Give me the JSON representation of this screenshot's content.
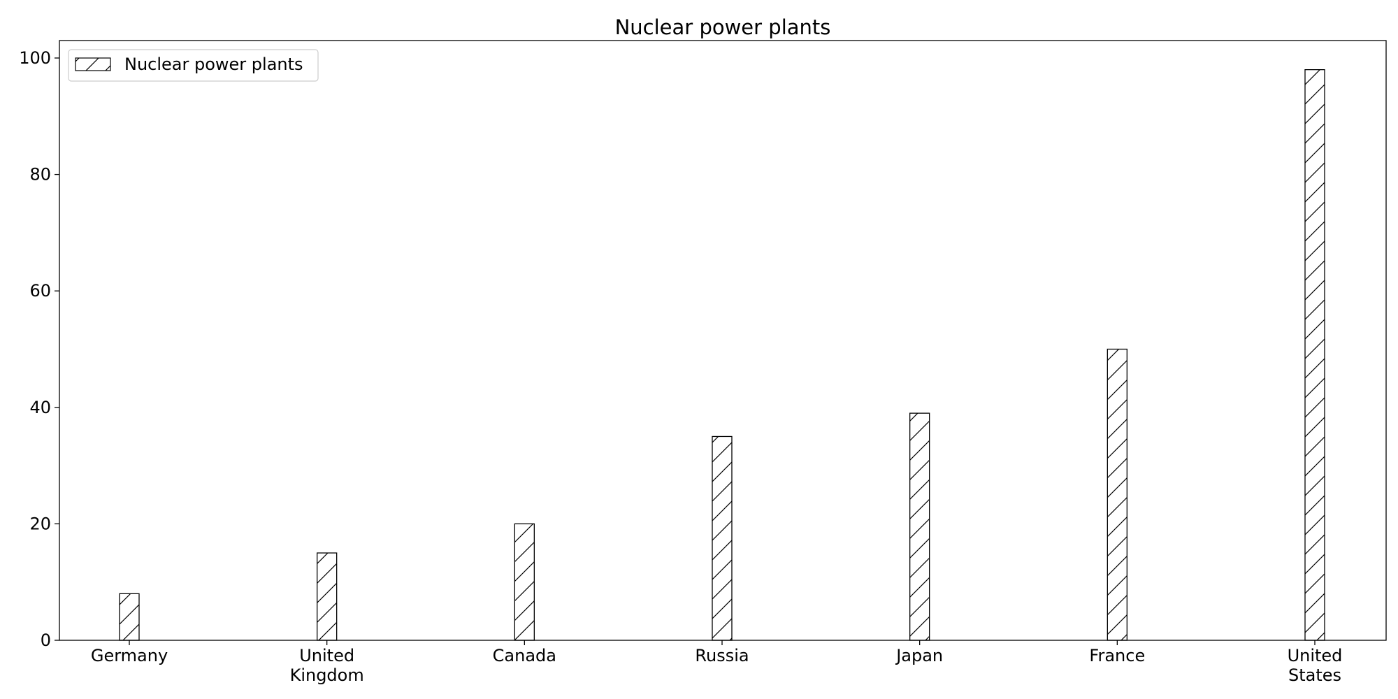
{
  "chart_data": {
    "type": "bar",
    "title": "Nuclear power plants",
    "xlabel": "",
    "ylabel": "",
    "categories": [
      [
        "Germany"
      ],
      [
        "United",
        "Kingdom"
      ],
      [
        "Canada"
      ],
      [
        "Russia"
      ],
      [
        "Japan"
      ],
      [
        "France"
      ],
      [
        "United",
        "States"
      ]
    ],
    "series": [
      {
        "name": "Nuclear power plants",
        "values": [
          8,
          15,
          20,
          35,
          39,
          50,
          98
        ]
      }
    ],
    "ylim": [
      0,
      103
    ],
    "yticks": [
      0,
      20,
      40,
      60,
      80,
      100
    ],
    "grid": false,
    "legend_position": "top-left",
    "bar_fill": "#ffffff",
    "bar_edge": "#000000",
    "hatch": "forward-diagonal"
  }
}
